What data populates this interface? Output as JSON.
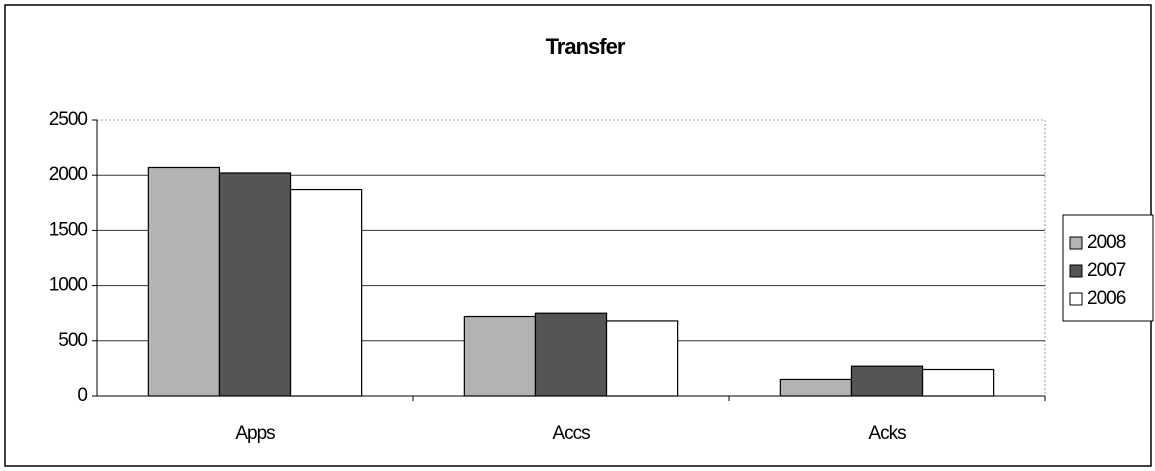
{
  "chart_data": {
    "type": "bar",
    "title": "Transfer",
    "categories": [
      "Apps",
      "Accs",
      "Acks"
    ],
    "series": [
      {
        "name": "2008",
        "color": "#b3b3b3",
        "values": [
          2070,
          720,
          150
        ]
      },
      {
        "name": "2007",
        "color": "#555555",
        "values": [
          2020,
          750,
          270
        ]
      },
      {
        "name": "2006",
        "color": "#ffffff",
        "values": [
          1870,
          680,
          240
        ]
      }
    ],
    "ylim": [
      0,
      2500
    ],
    "yticks": [
      0,
      500,
      1000,
      1500,
      2000,
      2500
    ],
    "grid": true,
    "legend": "right"
  }
}
